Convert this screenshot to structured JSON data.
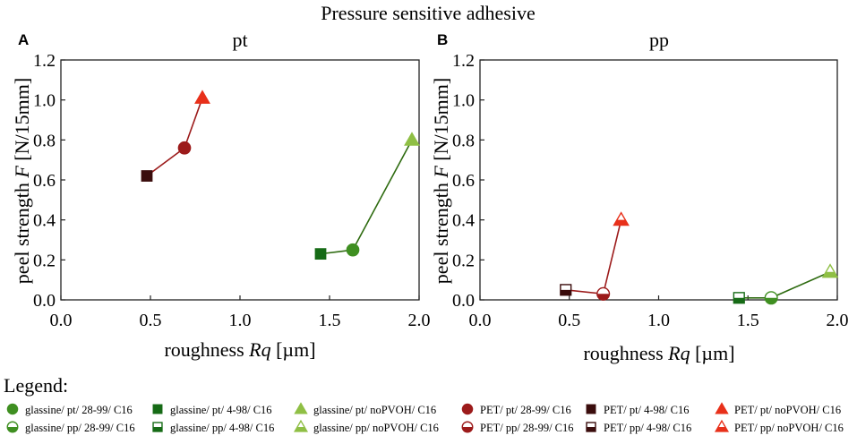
{
  "figure_title": "Pressure sensitive adhesive",
  "legend_title": "Legend:",
  "colors": {
    "glassine_28_99": "#3f8f21",
    "glassine_4_98": "#166b16",
    "glassine_noPVOH": "#8fbf45",
    "pet_28_99": "#9c1b1b",
    "pet_4_98": "#3a0c0c",
    "pet_noPVOH": "#e8301a"
  },
  "legend_items": [
    {
      "label": "glassine/ pt/ 28-99/ C16",
      "marker": "circle",
      "fill": "full",
      "color": "#3f8f21"
    },
    {
      "label": "glassine/ pp/ 28-99/ C16",
      "marker": "circle",
      "fill": "half",
      "color": "#3f8f21"
    },
    {
      "label": "glassine/ pt/ 4-98/ C16",
      "marker": "square",
      "fill": "full",
      "color": "#166b16"
    },
    {
      "label": "glassine/ pp/ 4-98/ C16",
      "marker": "square",
      "fill": "half",
      "color": "#166b16"
    },
    {
      "label": "glassine/ pt/ noPVOH/ C16",
      "marker": "triangle",
      "fill": "full",
      "color": "#8fbf45"
    },
    {
      "label": "glassine/ pp/ noPVOH/ C16",
      "marker": "triangle",
      "fill": "half",
      "color": "#8fbf45"
    },
    {
      "label": "PET/ pt/ 28-99/ C16",
      "marker": "circle",
      "fill": "full",
      "color": "#9c1b1b"
    },
    {
      "label": "PET/ pp/ 28-99/ C16",
      "marker": "circle",
      "fill": "half",
      "color": "#9c1b1b"
    },
    {
      "label": "PET/ pt/ 4-98/ C16",
      "marker": "square",
      "fill": "full",
      "color": "#3a0c0c"
    },
    {
      "label": "PET/ pp/ 4-98/ C16",
      "marker": "square",
      "fill": "half",
      "color": "#3a0c0c"
    },
    {
      "label": "PET/ pt/ noPVOH/ C16",
      "marker": "triangle",
      "fill": "full",
      "color": "#e8301a"
    },
    {
      "label": "PET/ pp/ noPVOH/ C16",
      "marker": "triangle",
      "fill": "half",
      "color": "#e8301a"
    }
  ],
  "chart_data": [
    {
      "type": "scatter",
      "panel_letter": "A",
      "title": "pt",
      "xlabel": "roughness Rq [µm]",
      "ylabel": "peel strength F [N/15mm]",
      "xlim": [
        0.0,
        2.0
      ],
      "ylim": [
        0.0,
        1.2
      ],
      "xticks": [
        "0.0",
        "0.5",
        "1.0",
        "1.5",
        "2.0"
      ],
      "yticks": [
        "0.0",
        "0.2",
        "0.4",
        "0.6",
        "0.8",
        "1.0",
        "1.2"
      ],
      "series": [
        {
          "name": "PET",
          "line_color": "#9c1b1b",
          "points": [
            {
              "x": 0.48,
              "y": 0.62,
              "marker": "square",
              "fill": "full",
              "color": "#3a0c0c"
            },
            {
              "x": 0.69,
              "y": 0.76,
              "marker": "circle",
              "fill": "full",
              "color": "#9c1b1b"
            },
            {
              "x": 0.79,
              "y": 1.01,
              "marker": "triangle",
              "fill": "full",
              "color": "#e8301a"
            }
          ]
        },
        {
          "name": "glassine",
          "line_color": "#2e6b10",
          "points": [
            {
              "x": 1.45,
              "y": 0.23,
              "marker": "square",
              "fill": "full",
              "color": "#166b16"
            },
            {
              "x": 1.63,
              "y": 0.25,
              "marker": "circle",
              "fill": "full",
              "color": "#3f8f21"
            },
            {
              "x": 1.96,
              "y": 0.8,
              "marker": "triangle",
              "fill": "full",
              "color": "#8fbf45"
            }
          ]
        }
      ]
    },
    {
      "type": "scatter",
      "panel_letter": "B",
      "title": "pp",
      "xlabel": "roughness Rq [µm]",
      "ylabel": "peel strength F [N/15mm]",
      "xlim": [
        0.0,
        2.0
      ],
      "ylim": [
        0.0,
        1.2
      ],
      "xticks": [
        "0.0",
        "0.5",
        "1.0",
        "1.5",
        "2.0"
      ],
      "yticks": [
        "0.0",
        "0.2",
        "0.4",
        "0.6",
        "0.8",
        "1.0",
        "1.2"
      ],
      "series": [
        {
          "name": "PET",
          "line_color": "#9c1b1b",
          "points": [
            {
              "x": 0.48,
              "y": 0.05,
              "marker": "square",
              "fill": "half",
              "color": "#3a0c0c"
            },
            {
              "x": 0.69,
              "y": 0.03,
              "marker": "circle",
              "fill": "half",
              "color": "#9c1b1b"
            },
            {
              "x": 0.79,
              "y": 0.4,
              "marker": "triangle",
              "fill": "half",
              "color": "#e8301a"
            }
          ]
        },
        {
          "name": "glassine",
          "line_color": "#2e6b10",
          "points": [
            {
              "x": 1.45,
              "y": 0.01,
              "marker": "square",
              "fill": "half",
              "color": "#166b16"
            },
            {
              "x": 1.63,
              "y": 0.01,
              "marker": "circle",
              "fill": "half",
              "color": "#3f8f21"
            },
            {
              "x": 1.96,
              "y": 0.14,
              "marker": "triangle",
              "fill": "half",
              "color": "#8fbf45"
            }
          ]
        }
      ]
    }
  ]
}
